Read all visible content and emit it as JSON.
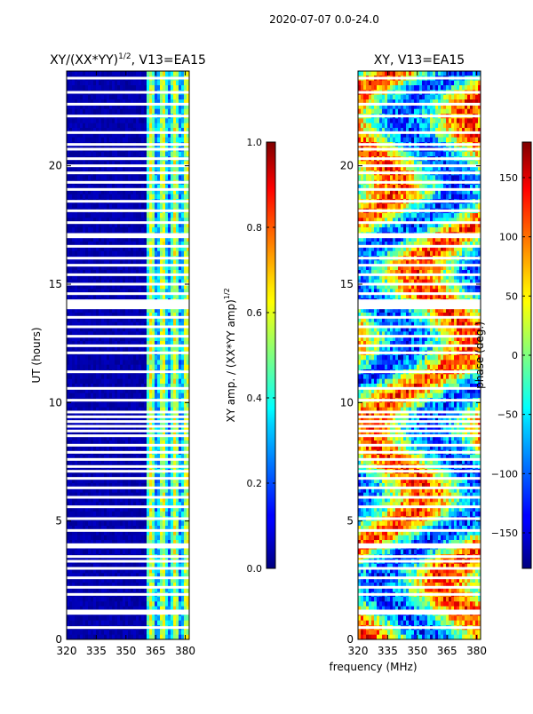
{
  "suptitle": "2020-07-07 0.0-24.0",
  "colors": {
    "jet_low": "#00007f",
    "jet_high": "#7f0000",
    "gap": "#ffffff",
    "frame": "#000000"
  },
  "chart_data": [
    {
      "type": "heatmap",
      "title_main": "XY/(XX*YY)",
      "title_sup": "1/2",
      "title_rest": ", V13=EA15",
      "xlabel": "frequency (MHz)",
      "ylabel": "UT (hours)",
      "xlim": [
        320,
        382
      ],
      "ylim": [
        0,
        24
      ],
      "xticks": [
        "320",
        "335",
        "350",
        "365",
        "380"
      ],
      "xtick_values": [
        320,
        335,
        350,
        365,
        380
      ],
      "yticks": [
        "0",
        "5",
        "10",
        "15",
        "20"
      ],
      "ytick_values": [
        0,
        5,
        10,
        15,
        20
      ],
      "quantity": "amplitude",
      "band_start_mhz": 360,
      "colorbar": {
        "label_main": "XY amp. / (XX*YY amp)",
        "label_sup": "1/2",
        "range": [
          0.0,
          1.0
        ],
        "ticks": [
          "0.0",
          "0.2",
          "0.4",
          "0.6",
          "0.8",
          "1.0"
        ],
        "tick_values": [
          0.0,
          0.2,
          0.4,
          0.6,
          0.8,
          1.0
        ]
      }
    },
    {
      "type": "heatmap",
      "title": "XY, V13=EA15",
      "xlabel": "",
      "ylabel": "",
      "xlim": [
        320,
        382
      ],
      "ylim": [
        0,
        24
      ],
      "xticks": [
        "320",
        "335",
        "350",
        "365",
        "380"
      ],
      "xtick_values": [
        320,
        335,
        350,
        365,
        380
      ],
      "yticks": [
        "0",
        "5",
        "10",
        "15",
        "20"
      ],
      "ytick_values": [
        0,
        5,
        10,
        15,
        20
      ],
      "quantity": "phase",
      "colorbar": {
        "label": "phase (deg.)",
        "range": [
          -180,
          180
        ],
        "ticks": [
          "−150",
          "−100",
          "−50",
          "0",
          "50",
          "100",
          "150"
        ],
        "tick_values": [
          -150,
          -100,
          -50,
          0,
          50,
          100,
          150
        ]
      }
    }
  ],
  "xlabel_shared": "frequency (MHz)",
  "flagged_ut_hours": [
    0.5,
    1.1,
    1.2,
    1.9,
    2.2,
    2.6,
    3.0,
    3.3,
    3.5,
    3.9,
    4.0,
    4.6,
    5.1,
    5.6,
    6.0,
    6.4,
    6.8,
    7.1,
    7.3,
    7.6,
    7.9,
    8.2,
    8.6,
    8.8,
    9.0,
    9.2,
    9.4,
    9.6,
    10.1,
    10.6,
    11.3,
    12.1,
    12.4,
    12.8,
    13.2,
    13.6,
    14.0,
    14.1,
    14.2,
    14.3,
    14.6,
    15.0,
    15.4,
    15.8,
    16.1,
    16.6,
    17.0,
    17.1,
    17.6,
    18.1,
    18.5,
    19.0,
    19.3,
    19.7,
    20.0,
    20.3,
    20.7,
    20.9,
    21.4,
    22.1,
    22.6,
    23.1,
    23.7
  ]
}
